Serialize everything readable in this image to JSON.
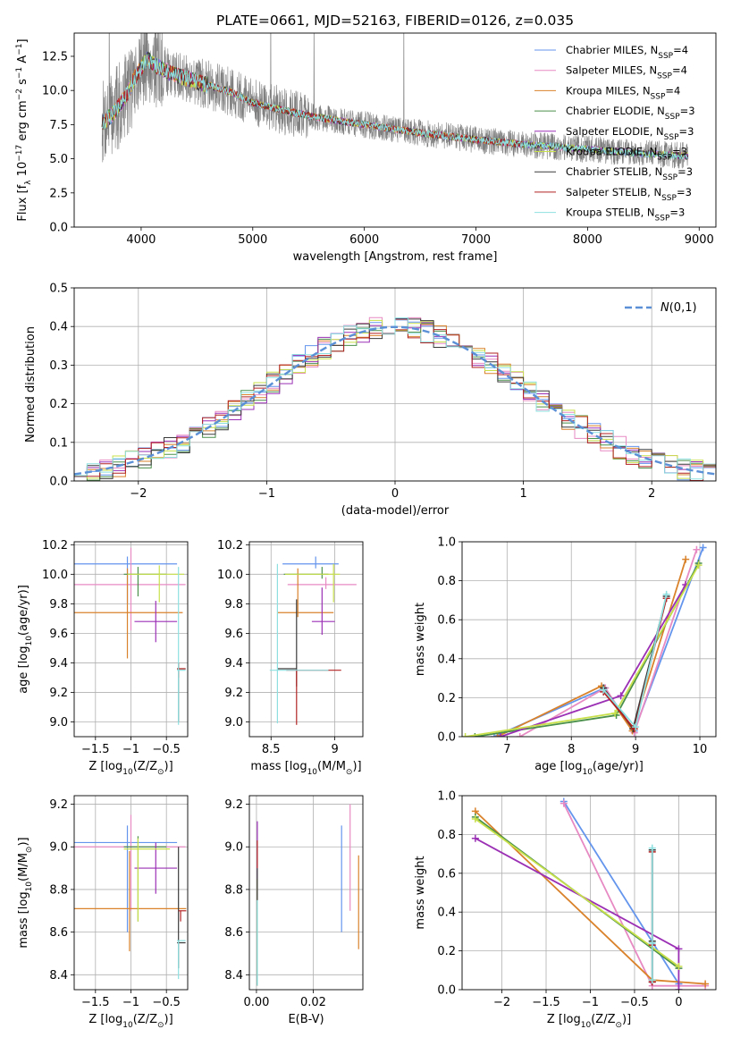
{
  "colors": {
    "chabrier_miles": "#6495ed",
    "salpeter_miles": "#e78ac3",
    "kroupa_miles": "#d9822b",
    "chabrier_elodie": "#4a8f4a",
    "salpeter_elodie": "#9b30b5",
    "kroupa_elodie": "#c8e04a",
    "chabrier_stelib": "#3a3a3a",
    "salpeter_stelib": "#b22222",
    "kroupa_stelib": "#8ee0e0",
    "spectrum": "#7f7f7f",
    "normal_curve": "#5b8fd6",
    "grid": "#b0b0b0"
  },
  "legend_entries": [
    "Chabrier MILES, N_SSP=4",
    "Salpeter MILES, N_SSP=4",
    "Kroupa MILES, N_SSP=4",
    "Chabrier ELODIE, N_SSP=3",
    "Salpeter ELODIE, N_SSP=3",
    "Kroupa ELODIE, N_SSP=3",
    "Chabrier STELIB, N_SSP=3",
    "Salpeter STELIB, N_SSP=3",
    "Kroupa STELIB, N_SSP=3"
  ],
  "chart_data": [
    {
      "id": "spectrum",
      "type": "line",
      "title": "PLATE=0661, MJD=52163, FIBERID=0126, z=0.035",
      "xlabel": "wavelength [Angstrom, rest frame]",
      "ylabel": "Flux [f_λ 10^-17 erg cm^-2 s^-1 A^-1]",
      "xlim": [
        3400,
        9150
      ],
      "ylim": [
        0,
        14.2
      ],
      "xticks": [
        4000,
        5000,
        6000,
        7000,
        8000,
        9000
      ],
      "yticks": [
        0.0,
        2.5,
        5.0,
        7.5,
        10.0,
        12.5
      ],
      "legend_position": "top-right",
      "data_range": [
        3650,
        8900
      ],
      "model_envelope": {
        "wavelength": [
          3650,
          3750,
          3850,
          3950,
          4050,
          4200,
          4400,
          4600,
          4800,
          5000,
          5300,
          5600,
          6000,
          6500,
          7000,
          7500,
          8000,
          8500,
          8900
        ],
        "flux": [
          7.6,
          8.3,
          9.4,
          11.0,
          12.3,
          11.5,
          10.9,
          10.4,
          9.9,
          9.1,
          8.5,
          8.0,
          7.5,
          6.9,
          6.4,
          6.0,
          5.7,
          5.4,
          5.2
        ]
      }
    },
    {
      "id": "residuals",
      "type": "line",
      "xlabel": "(data-model)/error",
      "ylabel": "Normed distribution",
      "xlim": [
        -2.5,
        2.5
      ],
      "ylim": [
        0,
        0.5
      ],
      "xticks": [
        -2,
        -1,
        0,
        1,
        2
      ],
      "yticks": [
        0.0,
        0.1,
        0.2,
        0.3,
        0.4,
        0.5
      ],
      "legend_position": "top-right",
      "legend_label": "N(0,1)",
      "bin_width": 0.1
    },
    {
      "id": "age_vs_Z",
      "type": "scatter",
      "xlabel": "Z [log10(Z/Z☉)]",
      "ylabel": "age  [log10(age/yr)]",
      "xlim": [
        -1.8,
        -0.2
      ],
      "ylim": [
        8.9,
        10.22
      ],
      "xticks": [
        -1.5,
        -1.0,
        -0.5
      ],
      "yticks": [
        9.0,
        9.2,
        9.4,
        9.6,
        9.8,
        10.0,
        10.2
      ],
      "points": [
        {
          "x": -1.05,
          "y": 10.07,
          "xerr": [
            0.75,
            0.7
          ],
          "yerr": [
            0.27,
            0.05
          ],
          "color": "chabrier_miles"
        },
        {
          "x": -1.0,
          "y": 9.93,
          "xerr": [
            0.8,
            0.77
          ],
          "yerr": [
            0.31,
            0.25
          ],
          "color": "salpeter_miles"
        },
        {
          "x": -1.05,
          "y": 9.74,
          "xerr": [
            0.75,
            0.78
          ],
          "yerr": [
            0.31,
            0.3
          ],
          "color": "kroupa_miles"
        },
        {
          "x": -0.9,
          "y": 10.0,
          "xerr": [
            0.2,
            0.4
          ],
          "yerr": [
            0.15,
            0.05
          ],
          "color": "chabrier_elodie"
        },
        {
          "x": -0.65,
          "y": 9.68,
          "xerr": [
            0.3,
            0.3
          ],
          "yerr": [
            0.14,
            0.14
          ],
          "color": "salpeter_elodie"
        },
        {
          "x": -0.6,
          "y": 10.0,
          "xerr": [
            0.45,
            0.35
          ],
          "yerr": [
            0.19,
            0.06
          ],
          "color": "kroupa_elodie"
        },
        {
          "x": -0.33,
          "y": 9.36,
          "xerr": [
            0.02,
            0.1
          ],
          "yerr": [
            0.36,
            0.04
          ],
          "color": "chabrier_stelib"
        },
        {
          "x": -0.33,
          "y": 9.36,
          "xerr": [
            0.02,
            0.1
          ],
          "yerr": [
            0.06,
            0.04
          ],
          "color": "salpeter_stelib"
        },
        {
          "x": -0.33,
          "y": 9.35,
          "xerr": [
            0.02,
            0.1
          ],
          "yerr": [
            0.37,
            0.7
          ],
          "color": "kroupa_stelib"
        }
      ]
    },
    {
      "id": "age_vs_mass",
      "type": "scatter",
      "xlabel": "mass [log10(M/M☉)]",
      "ylabel": "",
      "xlim": [
        8.33,
        9.22
      ],
      "ylim": [
        8.9,
        10.22
      ],
      "xticks": [
        8.5,
        9.0
      ],
      "yticks": [
        9.0,
        9.2,
        9.4,
        9.6,
        9.8,
        10.0,
        10.2
      ],
      "points": [
        {
          "x": 8.85,
          "y": 10.07,
          "xerr": [
            0.26,
            0.18
          ],
          "yerr": [
            0.03,
            0.05
          ],
          "color": "chabrier_miles"
        },
        {
          "x": 8.93,
          "y": 9.93,
          "xerr": [
            0.3,
            0.24
          ],
          "yerr": [
            0.03,
            0.05
          ],
          "color": "salpeter_miles"
        },
        {
          "x": 8.71,
          "y": 9.74,
          "xerr": [
            0.16,
            0.28
          ],
          "yerr": [
            0.03,
            0.3
          ],
          "color": "kroupa_miles"
        },
        {
          "x": 8.9,
          "y": 10.0,
          "xerr": [
            0.3,
            0.05
          ],
          "yerr": [
            0.03,
            0.05
          ],
          "color": "chabrier_elodie"
        },
        {
          "x": 8.9,
          "y": 9.68,
          "xerr": [
            0.08,
            0.1
          ],
          "yerr": [
            0.09,
            0.23
          ],
          "color": "salpeter_elodie"
        },
        {
          "x": 8.99,
          "y": 10.0,
          "xerr": [
            0.38,
            0.05
          ],
          "yerr": [
            0.19,
            0.07
          ],
          "color": "kroupa_elodie"
        },
        {
          "x": 8.7,
          "y": 9.36,
          "xerr": [
            0.15,
            0.0
          ],
          "yerr": [
            0.12,
            0.47
          ],
          "color": "chabrier_stelib"
        },
        {
          "x": 8.7,
          "y": 9.35,
          "xerr": [
            0.08,
            0.35
          ],
          "yerr": [
            0.37,
            0.0
          ],
          "color": "salpeter_stelib"
        },
        {
          "x": 8.55,
          "y": 9.35,
          "xerr": [
            0.06,
            0.4
          ],
          "yerr": [
            0.36,
            0.72
          ],
          "color": "kroupa_stelib"
        }
      ]
    },
    {
      "id": "mass_weight_vs_age",
      "type": "line",
      "xlabel": "age  [log10(age/yr)]",
      "ylabel": "mass weight",
      "xlim": [
        6.3,
        10.25
      ],
      "ylim": [
        0,
        1.0
      ],
      "xticks": [
        7,
        8,
        9,
        10
      ],
      "yticks": [
        0.0,
        0.2,
        0.4,
        0.6,
        0.8,
        1.0
      ],
      "series": [
        {
          "color": "chabrier_miles",
          "x": [
            6.8,
            8.52,
            8.98,
            10.05
          ],
          "y": [
            0.0,
            0.25,
            0.03,
            0.97
          ]
        },
        {
          "color": "salpeter_miles",
          "x": [
            7.2,
            8.53,
            8.98,
            9.95
          ],
          "y": [
            0.0,
            0.25,
            0.02,
            0.96
          ]
        },
        {
          "color": "kroupa_miles",
          "x": [
            6.85,
            8.47,
            8.95,
            9.78
          ],
          "y": [
            0.0,
            0.26,
            0.03,
            0.91
          ]
        },
        {
          "color": "chabrier_elodie",
          "x": [
            6.5,
            8.7,
            9.98
          ],
          "y": [
            0.0,
            0.11,
            0.89
          ]
        },
        {
          "color": "salpeter_elodie",
          "x": [
            6.9,
            8.77,
            9.78
          ],
          "y": [
            0.0,
            0.21,
            0.78
          ]
        },
        {
          "color": "kroupa_elodie",
          "x": [
            6.35,
            8.68,
            9.98
          ],
          "y": [
            0.0,
            0.12,
            0.88
          ]
        },
        {
          "color": "chabrier_stelib",
          "x": [
            8.5,
            8.96,
            9.48
          ],
          "y": [
            0.25,
            0.04,
            0.72
          ]
        },
        {
          "color": "salpeter_stelib",
          "x": [
            8.5,
            8.98,
            9.48
          ],
          "y": [
            0.23,
            0.04,
            0.71
          ]
        },
        {
          "color": "kroupa_stelib",
          "x": [
            8.5,
            9.0,
            9.48
          ],
          "y": [
            0.24,
            0.05,
            0.73
          ]
        }
      ]
    },
    {
      "id": "mass_vs_Z",
      "type": "scatter",
      "xlabel": "Z [log10(Z/Z☉)]",
      "ylabel": "mass [log10(M/M☉)]",
      "xlim": [
        -1.8,
        -0.2
      ],
      "ylim": [
        8.33,
        9.24
      ],
      "xticks": [
        -1.5,
        -1.0,
        -0.5
      ],
      "yticks": [
        8.4,
        8.6,
        8.8,
        9.0,
        9.2
      ],
      "points": [
        {
          "x": -1.05,
          "y": 9.02,
          "xerr": [
            0.75,
            0.7
          ],
          "yerr": [
            0.42,
            0.08
          ],
          "color": "chabrier_miles"
        },
        {
          "x": -1.0,
          "y": 9.0,
          "xerr": [
            0.8,
            0.77
          ],
          "yerr": [
            0.3,
            0.15
          ],
          "color": "salpeter_miles"
        },
        {
          "x": -1.02,
          "y": 8.71,
          "xerr": [
            0.78,
            0.8
          ],
          "yerr": [
            0.2,
            0.27
          ],
          "color": "kroupa_miles"
        },
        {
          "x": -0.9,
          "y": 9.0,
          "xerr": [
            0.2,
            0.4
          ],
          "yerr": [
            0.35,
            0.05
          ],
          "color": "chabrier_elodie"
        },
        {
          "x": -0.65,
          "y": 8.9,
          "xerr": [
            0.3,
            0.3
          ],
          "yerr": [
            0.12,
            0.12
          ],
          "color": "salpeter_elodie"
        },
        {
          "x": -0.9,
          "y": 8.99,
          "xerr": [
            0.2,
            0.45
          ],
          "yerr": [
            0.34,
            0.05
          ],
          "color": "kroupa_elodie"
        },
        {
          "x": -0.33,
          "y": 8.55,
          "xerr": [
            0.02,
            0.1
          ],
          "yerr": [
            0.12,
            0.45
          ],
          "color": "chabrier_stelib"
        },
        {
          "x": -0.3,
          "y": 8.7,
          "xerr": [
            0.03,
            0.08
          ],
          "yerr": [
            0.05,
            0.0
          ],
          "color": "salpeter_stelib"
        },
        {
          "x": -0.33,
          "y": 8.56,
          "xerr": [
            0.02,
            0.1
          ],
          "yerr": [
            0.18,
            0.0
          ],
          "color": "kroupa_stelib"
        }
      ]
    },
    {
      "id": "mass_vs_ebv",
      "type": "scatter",
      "xlabel": "E(B-V)",
      "ylabel": "",
      "xlim": [
        -0.0025,
        0.0375
      ],
      "ylim": [
        8.33,
        9.24
      ],
      "xticks": [
        0.0,
        0.02
      ],
      "yticks": [
        8.4,
        8.6,
        8.8,
        9.0,
        9.2
      ],
      "points": [
        {
          "x": 0.03,
          "y": 8.85,
          "yerr": [
            0.25,
            0.25
          ],
          "color": "chabrier_miles"
        },
        {
          "x": 0.033,
          "y": 8.95,
          "yerr": [
            0.25,
            0.25
          ],
          "color": "salpeter_miles"
        },
        {
          "x": 0.036,
          "y": 8.74,
          "yerr": [
            0.22,
            0.22
          ],
          "color": "kroupa_miles"
        },
        {
          "x": 0.0003,
          "y": 8.6,
          "yerr": [
            0.25,
            0.25
          ],
          "color": "chabrier_elodie"
        },
        {
          "x": 0.0003,
          "y": 8.9,
          "yerr": [
            0.2,
            0.22
          ],
          "color": "salpeter_elodie"
        },
        {
          "x": 0.0003,
          "y": 8.75,
          "yerr": [
            0.35,
            0.1
          ],
          "color": "kroupa_elodie"
        },
        {
          "x": 0.0003,
          "y": 8.65,
          "yerr": [
            0.3,
            0.25
          ],
          "color": "chabrier_stelib"
        },
        {
          "x": 0.0003,
          "y": 8.98,
          "yerr": [
            0.08,
            0.05
          ],
          "color": "salpeter_stelib"
        },
        {
          "x": 0.0003,
          "y": 8.55,
          "yerr": [
            0.2,
            0.2
          ],
          "color": "kroupa_stelib"
        }
      ]
    },
    {
      "id": "mass_weight_vs_Z",
      "type": "line",
      "xlabel": "Z [log10(Z/Z☉)]",
      "ylabel": "mass weight",
      "xlim": [
        -2.45,
        0.42
      ],
      "ylim": [
        0,
        1.0
      ],
      "xticks": [
        -2.0,
        -1.5,
        -1.0,
        -0.5,
        0.0
      ],
      "yticks": [
        0.0,
        0.2,
        0.4,
        0.6,
        0.8,
        1.0
      ],
      "series": [
        {
          "color": "chabrier_miles",
          "x": [
            -1.3,
            0.0
          ],
          "y": [
            0.97,
            0.03
          ]
        },
        {
          "color": "salpeter_miles",
          "x": [
            -1.3,
            -0.3,
            0.3
          ],
          "y": [
            0.96,
            0.02,
            0.02
          ]
        },
        {
          "color": "kroupa_miles",
          "x": [
            -2.3,
            -0.3,
            0.3
          ],
          "y": [
            0.92,
            0.05,
            0.03
          ]
        },
        {
          "color": "chabrier_elodie",
          "x": [
            -2.3,
            0.0
          ],
          "y": [
            0.89,
            0.11
          ]
        },
        {
          "color": "salpeter_elodie",
          "x": [
            -2.3,
            0.0,
            0.0
          ],
          "y": [
            0.78,
            0.21,
            0.0
          ]
        },
        {
          "color": "kroupa_elodie",
          "x": [
            -2.3,
            0.0
          ],
          "y": [
            0.88,
            0.12
          ]
        },
        {
          "color": "chabrier_stelib",
          "x": [
            -0.3,
            -0.3,
            -0.3
          ],
          "y": [
            0.72,
            0.25,
            0.04
          ]
        },
        {
          "color": "salpeter_stelib",
          "x": [
            -0.3,
            -0.3,
            -0.3
          ],
          "y": [
            0.71,
            0.23,
            0.04
          ]
        },
        {
          "color": "kroupa_stelib",
          "x": [
            -0.3,
            -0.3,
            -0.3
          ],
          "y": [
            0.73,
            0.24,
            0.05
          ]
        }
      ]
    }
  ]
}
